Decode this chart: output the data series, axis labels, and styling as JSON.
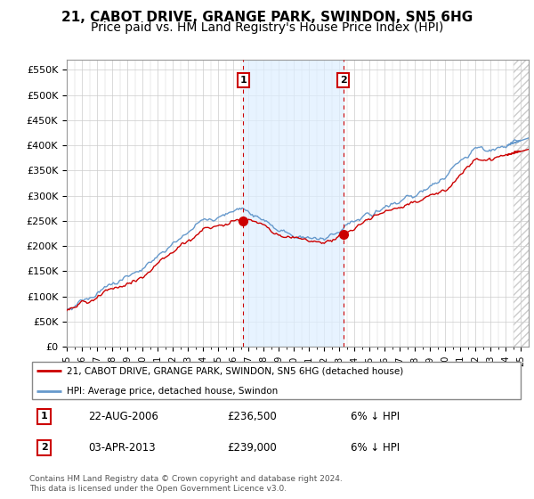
{
  "title": "21, CABOT DRIVE, GRANGE PARK, SWINDON, SN5 6HG",
  "subtitle": "Price paid vs. HM Land Registry's House Price Index (HPI)",
  "ylabel_ticks": [
    "£0",
    "£50K",
    "£100K",
    "£150K",
    "£200K",
    "£250K",
    "£300K",
    "£350K",
    "£400K",
    "£450K",
    "£500K",
    "£550K"
  ],
  "ytick_values": [
    0,
    50000,
    100000,
    150000,
    200000,
    250000,
    300000,
    350000,
    400000,
    450000,
    500000,
    550000
  ],
  "ylim": [
    0,
    570000
  ],
  "xlim_start": 1995.0,
  "xlim_end": 2025.5,
  "legend_line1": "21, CABOT DRIVE, GRANGE PARK, SWINDON, SN5 6HG (detached house)",
  "legend_line2": "HPI: Average price, detached house, Swindon",
  "sale1_date": "22-AUG-2006",
  "sale1_price": "£236,500",
  "sale1_hpi": "6% ↓ HPI",
  "sale2_date": "03-APR-2013",
  "sale2_price": "£239,000",
  "sale2_hpi": "6% ↓ HPI",
  "copyright_text": "Contains HM Land Registry data © Crown copyright and database right 2024.\nThis data is licensed under the Open Government Licence v3.0.",
  "line_color_red": "#cc0000",
  "line_color_blue": "#6699cc",
  "shade_color": "#ddeeff",
  "background_color": "#ffffff",
  "annotation_box_color": "#cc0000",
  "grid_color": "#cccccc",
  "title_fontsize": 11,
  "subtitle_fontsize": 10,
  "tick_fontsize": 8,
  "sale1_x": 2006.65,
  "sale1_y": 236500,
  "sale2_x": 2013.25,
  "sale2_y": 239000,
  "future_start": 2024.5
}
